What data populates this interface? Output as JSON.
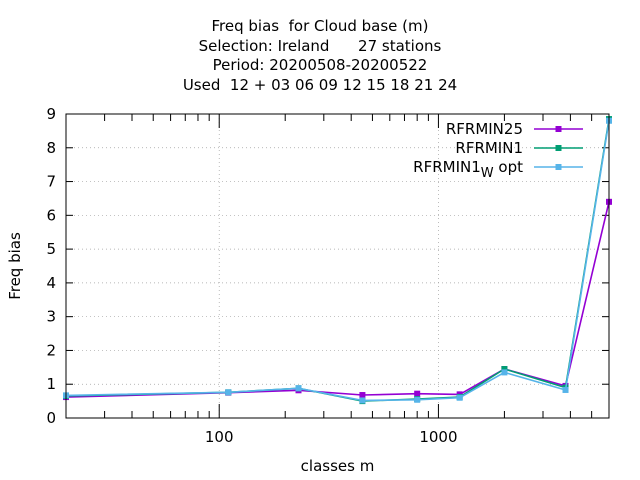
{
  "chart_data": {
    "type": "line",
    "title_lines": [
      "Freq bias  for Cloud base (m)",
      "Selection: Ireland      27 stations",
      "Period: 20200508-20200522",
      "Used  12 + 03 06 09 12 15 18 21 24"
    ],
    "xlabel": "classes m",
    "ylabel": "Freq bias",
    "x_scale": "log",
    "xlim": [
      20,
      6000
    ],
    "ylim": [
      0,
      9
    ],
    "x_ticks": [
      100,
      1000
    ],
    "x_tick_labels": [
      "100",
      "1000"
    ],
    "y_ticks": [
      0,
      1,
      2,
      3,
      4,
      5,
      6,
      7,
      8,
      9
    ],
    "y_tick_labels": [
      "0",
      "1",
      "2",
      "3",
      "4",
      "5",
      "6",
      "7",
      "8",
      "9"
    ],
    "grid": true,
    "legend_position": "top-right",
    "x": [
      20,
      110,
      230,
      450,
      800,
      1250,
      2000,
      3800,
      6000
    ],
    "series": [
      {
        "name": "RFRMIN25",
        "color": "#9400d3",
        "values": [
          0.62,
          0.75,
          0.82,
          0.68,
          0.72,
          0.7,
          1.45,
          0.95,
          6.4
        ]
      },
      {
        "name": "RFRMIN1",
        "color": "#009e73",
        "values": [
          0.65,
          0.76,
          0.88,
          0.5,
          0.56,
          0.62,
          1.45,
          0.9,
          8.85
        ]
      },
      {
        "name": "RFRMIN1_W opt",
        "label_main": "RFRMIN1",
        "label_sub": "W",
        "label_tail": " opt",
        "color": "#56b4e9",
        "values": [
          0.67,
          0.76,
          0.88,
          0.52,
          0.54,
          0.6,
          1.35,
          0.83,
          8.8
        ]
      }
    ]
  }
}
